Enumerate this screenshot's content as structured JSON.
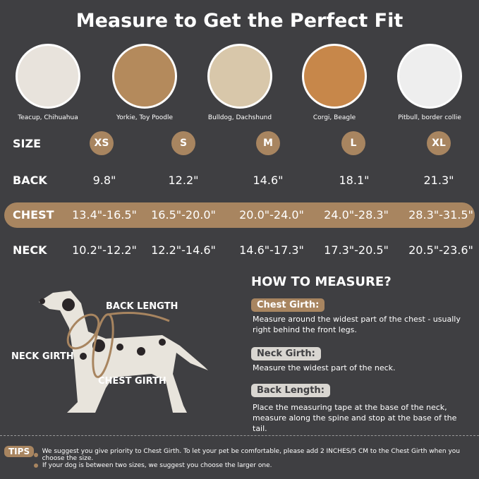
{
  "title": "Measure to Get the Perfect Fit",
  "breeds": [
    "Teacup, Chihuahua",
    "Yorkie, Toy Poodle",
    "Bulldog, Dachshund",
    "Corgi, Beagle",
    "Pitbull, border collie"
  ],
  "rows": {
    "size": {
      "label": "SIZE",
      "values": [
        "XS",
        "S",
        "M",
        "L",
        "XL"
      ]
    },
    "back": {
      "label": "BACK",
      "values": [
        "9.8\"",
        "12.2\"",
        "14.6\"",
        "18.1\"",
        "21.3\""
      ]
    },
    "chest": {
      "label": "CHEST",
      "values": [
        "13.4\"-16.5\"",
        "16.5\"-20.0\"",
        "20.0\"-24.0\"",
        "24.0\"-28.3\"",
        "28.3\"-31.5\""
      ]
    },
    "neck": {
      "label": "NECK",
      "values": [
        "10.2\"-12.2\"",
        "12.2\"-14.6\"",
        "14.6\"-17.3\"",
        "17.3\"-20.5\"",
        "20.5\"-23.6\""
      ]
    }
  },
  "diagram": {
    "back_length": "BACK LENGTH",
    "neck_girth": "NECK GIRTH",
    "chest_girth": "CHEST GIRTH"
  },
  "how_to": {
    "title": "HOW TO MEASURE?",
    "items": [
      {
        "label": "Chest Girth:",
        "text": "Measure around the widest part of the chest - usually right behind the front legs."
      },
      {
        "label": "Neck Girth:",
        "text": "Measure the widest part of the neck."
      },
      {
        "label": "Back Length:",
        "text": "Place the measuring tape at the base of the neck, measure along the spine and stop at the base of the tail."
      }
    ]
  },
  "tips": {
    "label": "TIPS",
    "items": [
      "We suggest you give priority to Chest Girth. To let your pet be comfortable, please add 2 INCHES/5 CM to the Chest Girth when you choose the size.",
      "If your dog is between two sizes, we suggest you choose the larger one."
    ]
  },
  "colors": {
    "background": "#3f3f42",
    "accent": "#a88560"
  }
}
